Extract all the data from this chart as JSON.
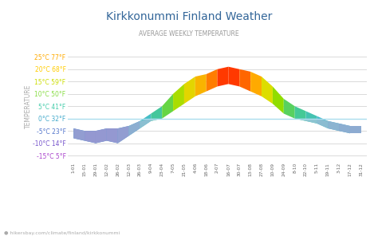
{
  "title": "Kirkkonummi Finland Weather",
  "subtitle": "AVERAGE WEEKLY TEMPERATURE",
  "url_text": "hikersbay.com/climate/finland/kirkkonummi",
  "ylabel": "TEMPERATURE",
  "yticks": [
    -15,
    -10,
    -5,
    0,
    5,
    10,
    15,
    20,
    25
  ],
  "ytick_labels": [
    "-15°C 5°F",
    "-10°C 14°F",
    "-5°C 23°F",
    "0°C 32°F",
    "5°C 41°F",
    "10°C 50°F",
    "15°C 59°F",
    "20°C 68°F",
    "25°C 77°F"
  ],
  "ytick_colors": [
    "#aa44cc",
    "#7755cc",
    "#5577cc",
    "#44aacc",
    "#44ccaa",
    "#88dd44",
    "#ccdd00",
    "#ffcc00",
    "#ffaa00"
  ],
  "xtick_labels": [
    "1-01",
    "15-01",
    "29-01",
    "12-02",
    "26-02",
    "12-03",
    "26-03",
    "9-04",
    "23-04",
    "7-05",
    "21-05",
    "4-06",
    "18-06",
    "2-07",
    "16-07",
    "30-07",
    "13-08",
    "27-08",
    "10-09",
    "24-09",
    "8-10",
    "22-10",
    "5-11",
    "19-11",
    "3-12",
    "17-12",
    "31-12"
  ],
  "day_high": [
    -4,
    -5,
    -5,
    -4,
    -4,
    -3,
    -1,
    2,
    5,
    10,
    14,
    17,
    18,
    20,
    21,
    20,
    19,
    17,
    13,
    8,
    5,
    3,
    1,
    -1,
    -2,
    -3,
    -3
  ],
  "night_low": [
    -8,
    -9,
    -10,
    -9,
    -10,
    -7,
    -4,
    -1,
    0,
    3,
    6,
    9,
    11,
    13,
    14,
    13,
    11,
    9,
    6,
    2,
    0,
    -1,
    -2,
    -4,
    -5,
    -6,
    -6
  ],
  "background_color": "#ffffff",
  "title_color": "#336699",
  "subtitle_color": "#999999",
  "legend_day_color": "#ff4400",
  "legend_night_color": "#aaaacc",
  "color_stops": [
    [
      -15,
      "#8833bb"
    ],
    [
      -10,
      "#5555cc"
    ],
    [
      -5,
      "#4488cc"
    ],
    [
      0,
      "#44bbcc"
    ],
    [
      5,
      "#44cc88"
    ],
    [
      10,
      "#88dd00"
    ],
    [
      15,
      "#dddd00"
    ],
    [
      18,
      "#ffaa00"
    ],
    [
      21,
      "#ff2200"
    ]
  ],
  "ylim": [
    -17,
    27
  ],
  "figsize": [
    4.74,
    2.96
  ],
  "dpi": 100
}
